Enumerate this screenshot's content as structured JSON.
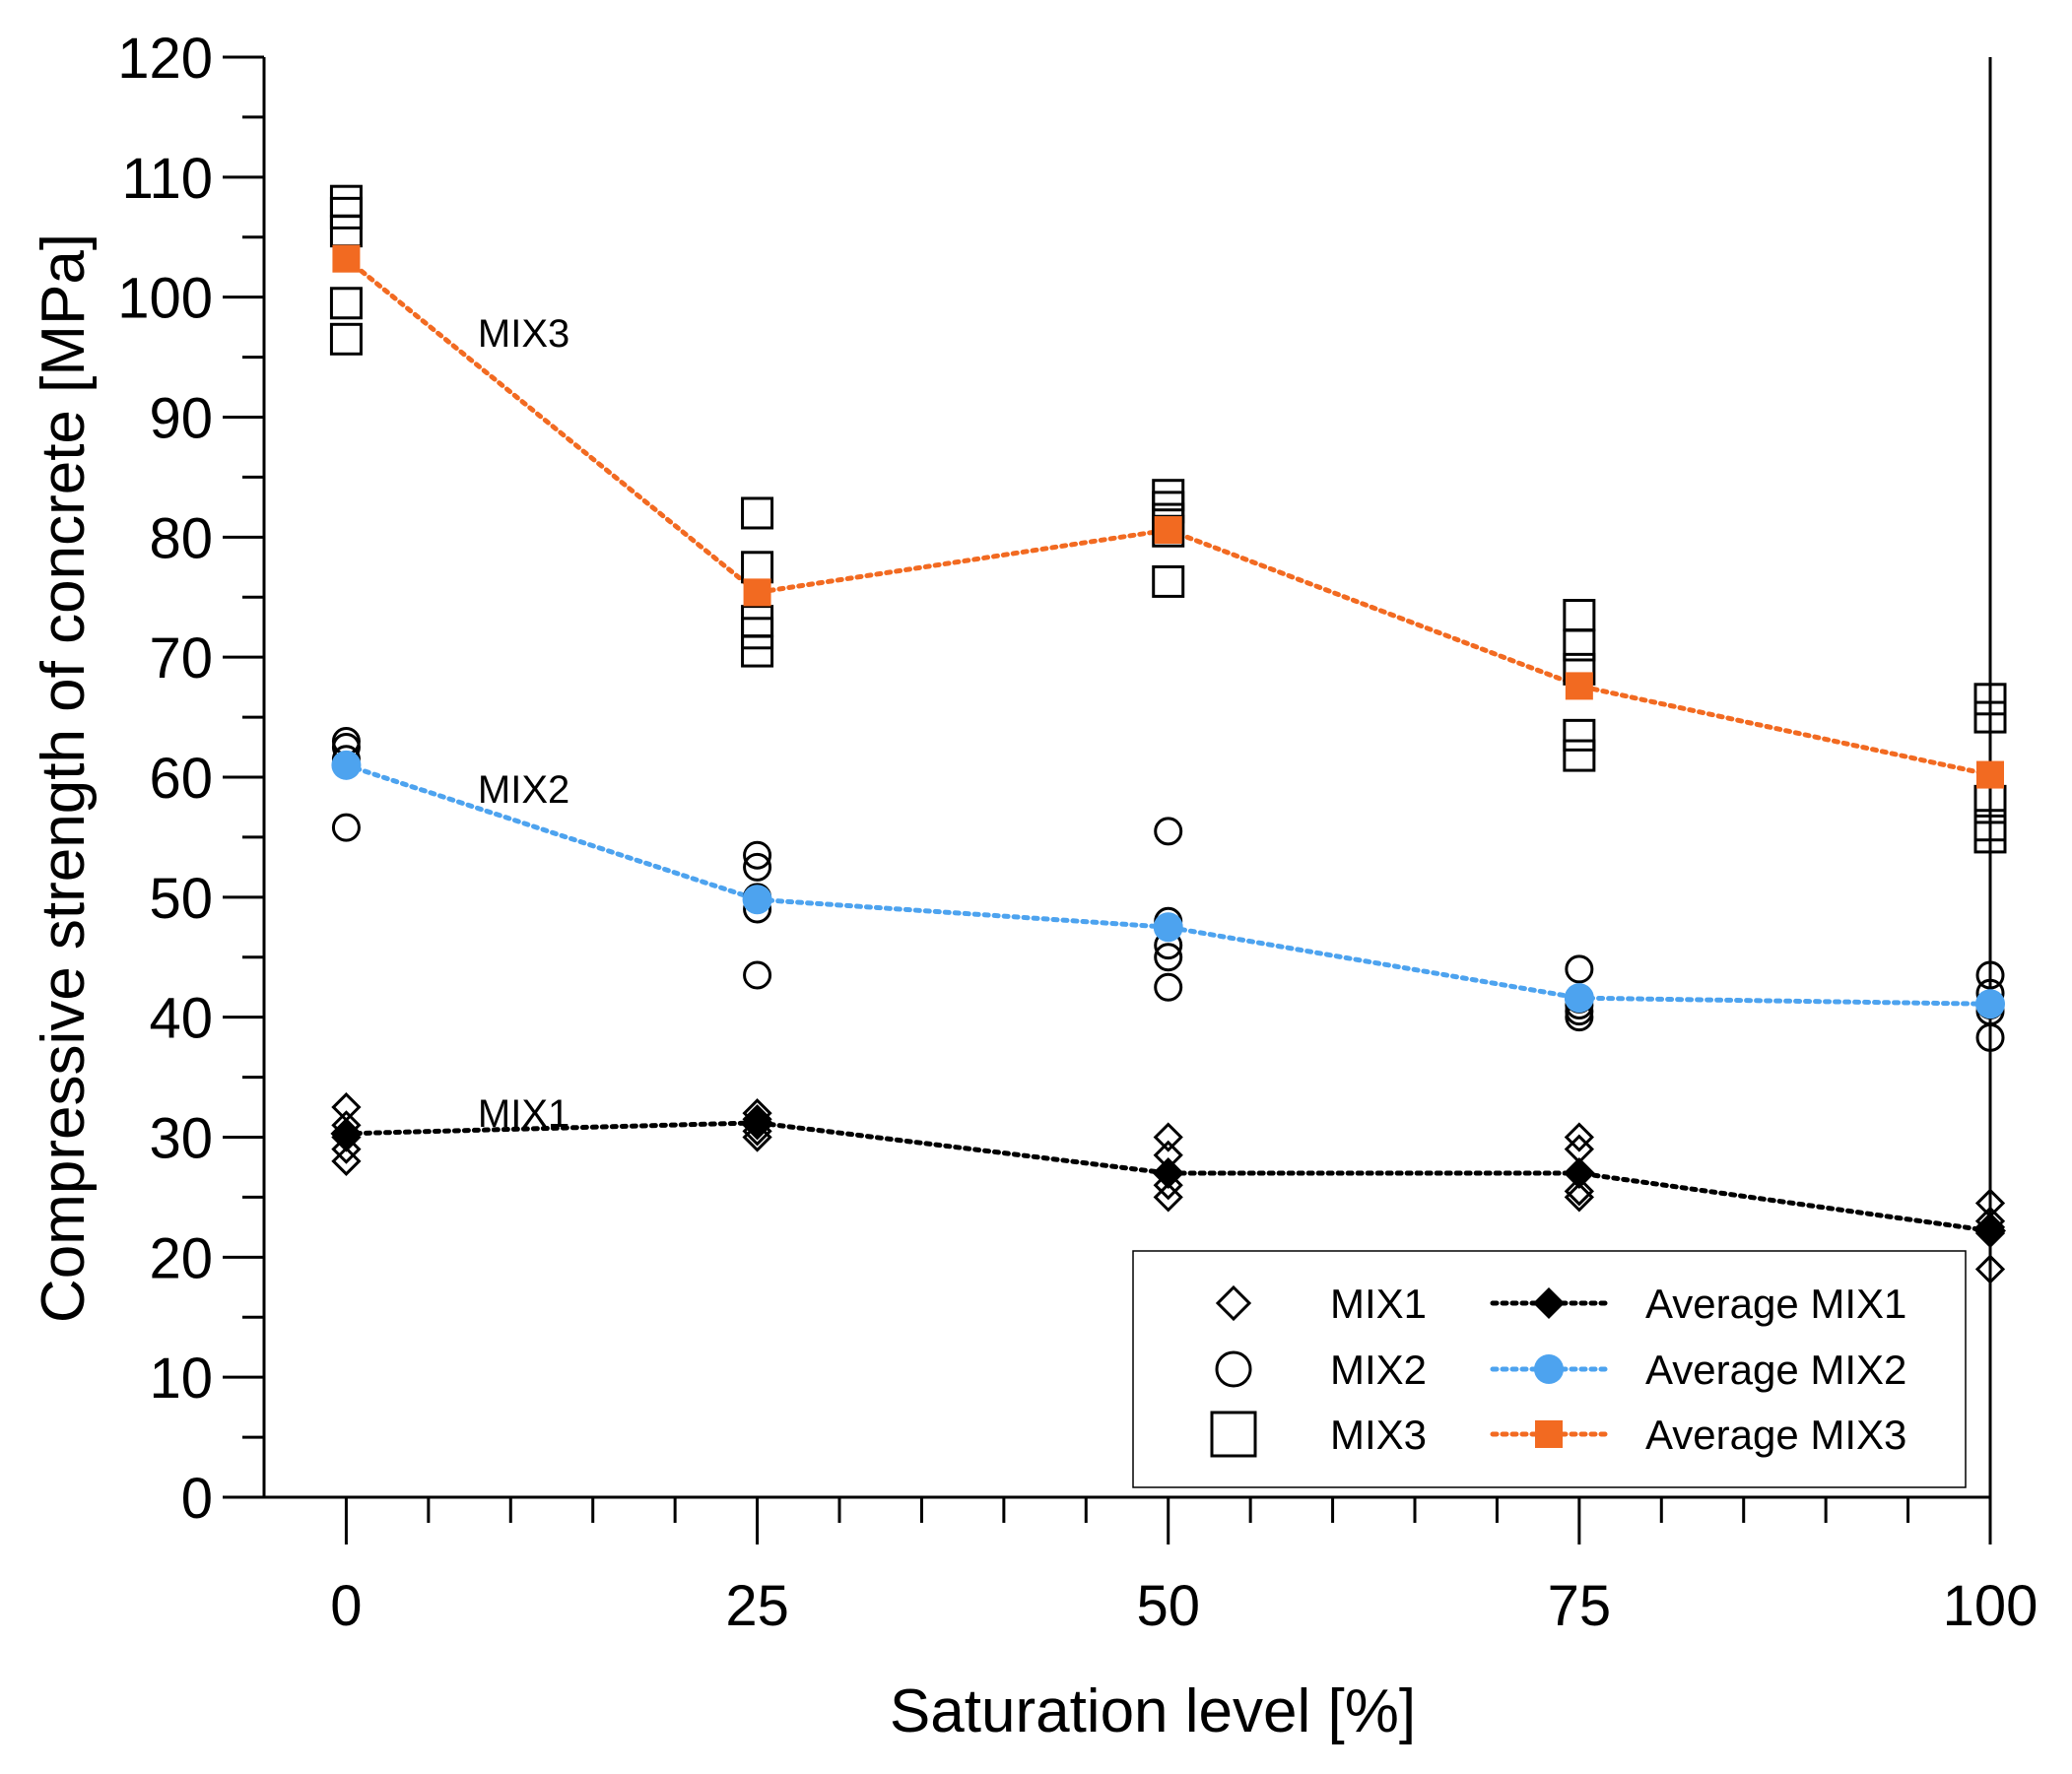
{
  "chart_data": {
    "type": "scatter",
    "xlabel": "Saturation level [%]",
    "ylabel": "Compressive strength of concrete [MPa]",
    "xlim": [
      -5,
      100
    ],
    "ylim": [
      0,
      120
    ],
    "x_ticks": [
      0,
      25,
      50,
      75,
      100
    ],
    "x_tick_labels": [
      "0",
      "25",
      "50",
      "75",
      "100"
    ],
    "x_minor_step": 5,
    "y_ticks": [
      0,
      10,
      20,
      30,
      40,
      50,
      60,
      70,
      80,
      90,
      100,
      110,
      120
    ],
    "y_tick_labels": [
      "0",
      "10",
      "20",
      "30",
      "40",
      "50",
      "60",
      "70",
      "80",
      "90",
      "100",
      "110",
      "120"
    ],
    "y_minor_step": 5,
    "grid": false,
    "legend_position": "bottom-right",
    "scatter_series": [
      {
        "name": "MIX1",
        "marker": "diamond-open",
        "points": [
          [
            0,
            32.5
          ],
          [
            0,
            31.0
          ],
          [
            0,
            30.0
          ],
          [
            0,
            29.0
          ],
          [
            0,
            28.0
          ],
          [
            25,
            32.0
          ],
          [
            25,
            31.5
          ],
          [
            25,
            31.0
          ],
          [
            25,
            30.5
          ],
          [
            25,
            30.0
          ],
          [
            50,
            30.0
          ],
          [
            50,
            28.5
          ],
          [
            50,
            27.0
          ],
          [
            50,
            26.0
          ],
          [
            50,
            25.0
          ],
          [
            75,
            30.0
          ],
          [
            75,
            29.0
          ],
          [
            75,
            27.0
          ],
          [
            75,
            25.5
          ],
          [
            75,
            25.0
          ],
          [
            100,
            24.5
          ],
          [
            100,
            23.0
          ],
          [
            100,
            22.5
          ],
          [
            100,
            22.0
          ],
          [
            100,
            19.0
          ]
        ]
      },
      {
        "name": "MIX2",
        "marker": "circle-open",
        "points": [
          [
            0,
            63.0
          ],
          [
            0,
            62.5
          ],
          [
            0,
            61.5
          ],
          [
            0,
            61.0
          ],
          [
            0,
            55.8
          ],
          [
            25,
            53.5
          ],
          [
            25,
            52.5
          ],
          [
            25,
            50.0
          ],
          [
            25,
            49.0
          ],
          [
            25,
            43.5
          ],
          [
            50,
            55.5
          ],
          [
            50,
            48.0
          ],
          [
            50,
            46.0
          ],
          [
            50,
            45.0
          ],
          [
            50,
            42.5
          ],
          [
            75,
            44.0
          ],
          [
            75,
            41.5
          ],
          [
            75,
            40.5
          ],
          [
            75,
            40.0
          ],
          [
            75,
            41.0
          ],
          [
            100,
            43.5
          ],
          [
            100,
            42.0
          ],
          [
            100,
            41.0
          ],
          [
            100,
            40.5
          ],
          [
            100,
            38.3
          ]
        ]
      },
      {
        "name": "MIX3",
        "marker": "square-open",
        "points": [
          [
            0,
            108.0
          ],
          [
            0,
            107.0
          ],
          [
            0,
            105.5
          ],
          [
            0,
            99.5
          ],
          [
            0,
            96.5
          ],
          [
            25,
            82.0
          ],
          [
            25,
            77.5
          ],
          [
            25,
            73.0
          ],
          [
            25,
            72.0
          ],
          [
            25,
            70.5
          ],
          [
            50,
            83.5
          ],
          [
            50,
            82.5
          ],
          [
            50,
            81.5
          ],
          [
            50,
            80.5
          ],
          [
            50,
            76.3
          ],
          [
            75,
            73.5
          ],
          [
            75,
            71.0
          ],
          [
            75,
            69.0
          ],
          [
            75,
            63.5
          ],
          [
            75,
            61.8
          ],
          [
            100,
            66.5
          ],
          [
            100,
            65.0
          ],
          [
            100,
            58.0
          ],
          [
            100,
            56.0
          ],
          [
            100,
            55.0
          ]
        ]
      }
    ],
    "line_series": [
      {
        "name": "Average MIX1",
        "marker": "diamond-filled",
        "color": "#000000",
        "x": [
          0,
          25,
          50,
          75,
          100
        ],
        "y": [
          30.3,
          31.2,
          27.0,
          27.0,
          22.2
        ]
      },
      {
        "name": "Average MIX2",
        "marker": "circle-filled",
        "color": "#4da3ef",
        "x": [
          0,
          25,
          50,
          75,
          100
        ],
        "y": [
          61.0,
          49.8,
          47.5,
          41.6,
          41.1
        ]
      },
      {
        "name": "Average MIX3",
        "marker": "square-filled",
        "color": "#f26a21",
        "x": [
          0,
          25,
          50,
          75,
          100
        ],
        "y": [
          103.2,
          75.4,
          80.6,
          67.6,
          60.2
        ]
      }
    ],
    "annotations": [
      {
        "text": "MIX3",
        "x": 8,
        "y": 97
      },
      {
        "text": "MIX2",
        "x": 8,
        "y": 59
      },
      {
        "text": "MIX1",
        "x": 8,
        "y": 32
      }
    ],
    "legend": [
      {
        "label": "MIX1",
        "marker": "diamond-open",
        "line": false
      },
      {
        "label": "Average MIX1",
        "marker": "diamond-filled",
        "line": true,
        "color": "#000000"
      },
      {
        "label": "MIX2",
        "marker": "circle-open",
        "line": false
      },
      {
        "label": "Average MIX2",
        "marker": "circle-filled",
        "line": true,
        "color": "#4da3ef"
      },
      {
        "label": "MIX3",
        "marker": "square-open",
        "line": false
      },
      {
        "label": "Average MIX3",
        "marker": "square-filled",
        "line": true,
        "color": "#f26a21"
      }
    ]
  }
}
